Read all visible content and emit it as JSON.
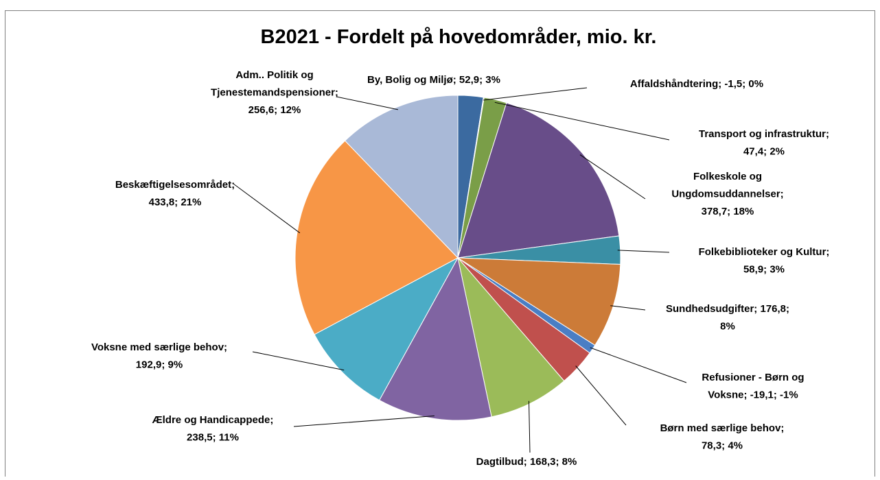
{
  "chart_data": {
    "type": "pie",
    "title": "B2021 - Fordelt på hovedområder, mio. kr.",
    "values": [
      52.9,
      -1.5,
      47.4,
      378.7,
      58.9,
      176.8,
      -19.1,
      78.3,
      168.3,
      238.5,
      192.9,
      433.8,
      256.6
    ],
    "labels": [
      [
        "By, Bolig og Miljø; 52,9; 3%"
      ],
      [
        "Affaldshåndtering; -1,5; 0%"
      ],
      [
        "Transport og infrastruktur;",
        "47,4; 2%"
      ],
      [
        "Folkeskole og",
        "Ungdomsuddannelser;",
        "378,7; 18%"
      ],
      [
        "Folkebiblioteker og Kultur;",
        "58,9; 3%"
      ],
      [
        "Sundhedsudgifter; 176,8;",
        "8%"
      ],
      [
        "Refusioner - Børn og",
        "Voksne; -19,1; -1%"
      ],
      [
        "Børn med særlige behov;",
        "78,3; 4%"
      ],
      [
        "Dagtilbud; 168,3; 8%"
      ],
      [
        "Ældre og Handicappede;",
        "238,5; 11%"
      ],
      [
        "Voksne med særlige behov;",
        "192,9; 9%"
      ],
      [
        "Beskæftigelsesområdet;",
        "433,8; 21%"
      ],
      [
        "Adm.. Politik og",
        "Tjenestemandspensioner;",
        "256,6; 12%"
      ]
    ],
    "colors": [
      "#3b6aa0",
      "#4f6228",
      "#7a9e48",
      "#684d89",
      "#3a8fa5",
      "#cc7b38",
      "#4a7ec4",
      "#c0504d",
      "#9bbb59",
      "#8064a2",
      "#4bacc6",
      "#f79646",
      "#a9b9d7"
    ]
  }
}
